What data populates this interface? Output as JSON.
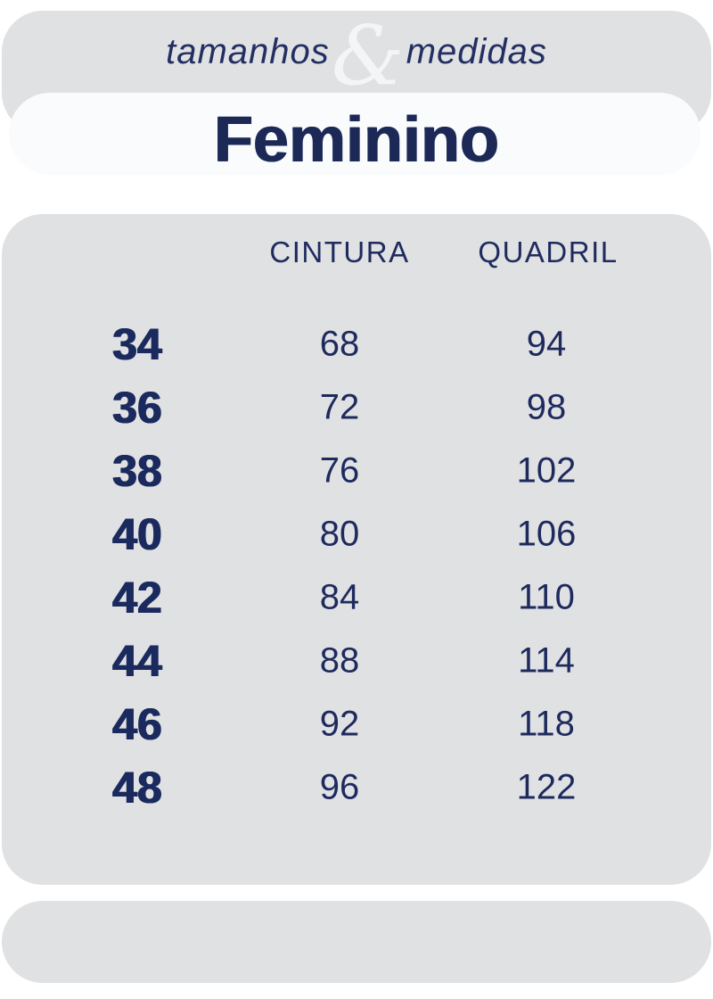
{
  "header": {
    "tagline_left": "tamanhos",
    "tagline_amp": "&",
    "tagline_right": "medidas",
    "title": "Feminino"
  },
  "table": {
    "headers": {
      "cintura": "CINTURA",
      "quadril": "QUADRIL"
    },
    "rows": [
      {
        "size": "34",
        "cintura": "68",
        "quadril": "94"
      },
      {
        "size": "36",
        "cintura": "72",
        "quadril": "98"
      },
      {
        "size": "38",
        "cintura": "76",
        "quadril": "102"
      },
      {
        "size": "40",
        "cintura": "80",
        "quadril": "106"
      },
      {
        "size": "42",
        "cintura": "84",
        "quadril": "110"
      },
      {
        "size": "44",
        "cintura": "88",
        "quadril": "114"
      },
      {
        "size": "46",
        "cintura": "92",
        "quadril": "118"
      },
      {
        "size": "48",
        "cintura": "96",
        "quadril": "122"
      }
    ]
  },
  "colors": {
    "navy": "#1e2a5e",
    "card_gray": "#e0e1e2",
    "ampersand_light": "#f4f5f7",
    "pill_white": "#fafbfc",
    "page_bg": "#ffffff"
  },
  "chart_data": {
    "type": "table",
    "title": "tamanhos & medidas — Feminino",
    "columns": [
      "",
      "CINTURA",
      "QUADRIL"
    ],
    "rows": [
      [
        34,
        68,
        94
      ],
      [
        36,
        72,
        98
      ],
      [
        38,
        76,
        102
      ],
      [
        40,
        80,
        106
      ],
      [
        42,
        84,
        110
      ],
      [
        44,
        88,
        114
      ],
      [
        46,
        92,
        118
      ],
      [
        48,
        96,
        122
      ]
    ]
  }
}
